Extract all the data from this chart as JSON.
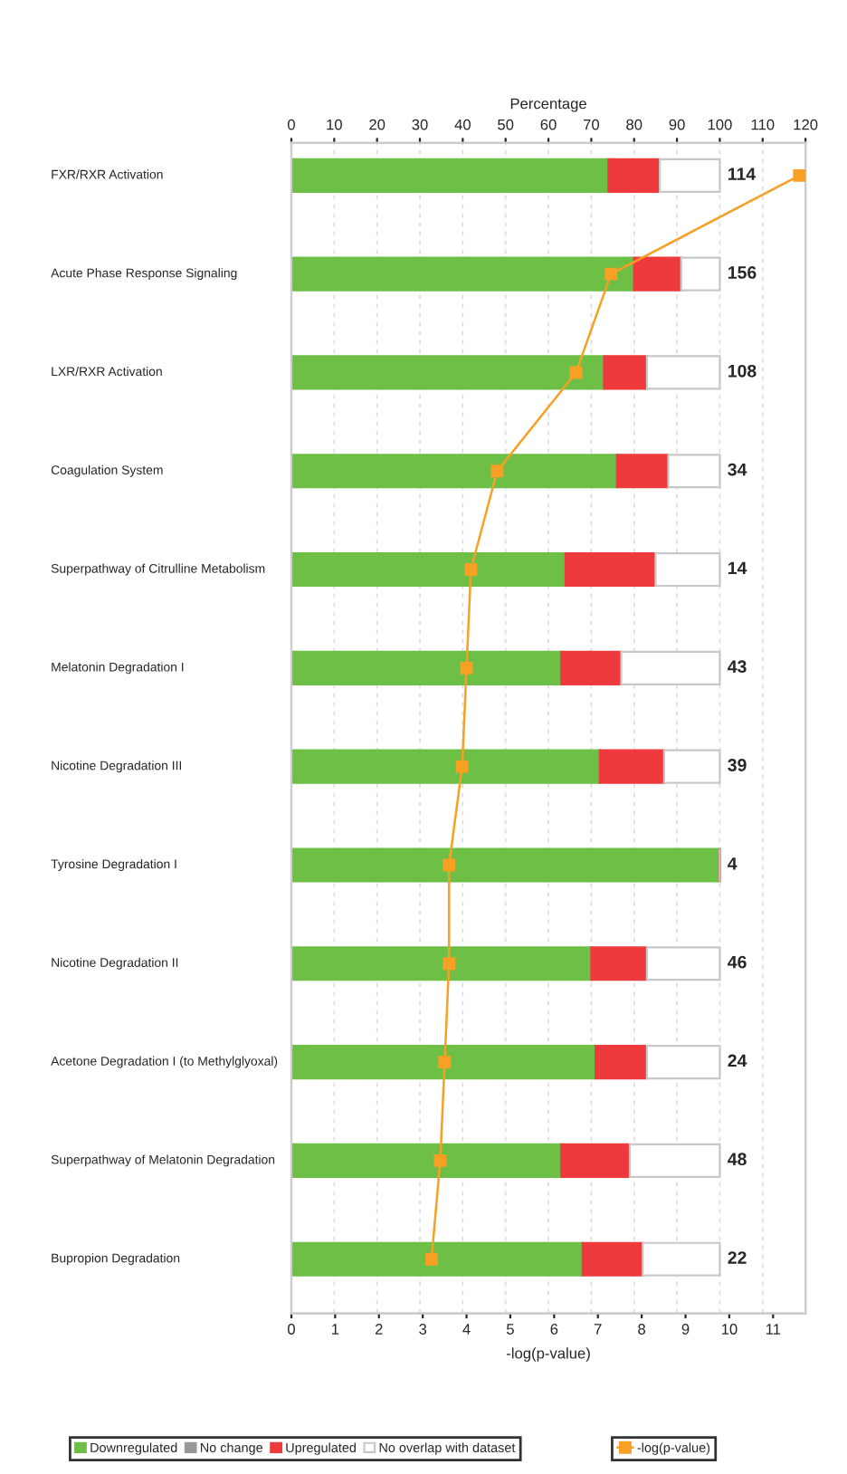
{
  "chart_data": {
    "type": "bar",
    "orientation": "horizontal",
    "stacked": true,
    "categories": [
      "FXR/RXR Activation",
      "Acute Phase Response Signaling",
      "LXR/RXR Activation",
      "Coagulation System",
      "Superpathway of Citrulline Metabolism",
      "Melatonin Degradation I",
      "Nicotine Degradation III",
      "Tyrosine Degradation I",
      "Nicotine Degradation II",
      "Acetone Degradation I (to Methylglyoxal)",
      "Superpathway of Melatonin Degradation",
      "Bupropion Degradation"
    ],
    "series": [
      {
        "name": "Downregulated",
        "color": "#6dbf45",
        "values": [
          74,
          80,
          73,
          76,
          64,
          63,
          72,
          100,
          70,
          71,
          63,
          68
        ]
      },
      {
        "name": "No change",
        "color": "#999999",
        "values": [
          0,
          0,
          0,
          0,
          0,
          0,
          0,
          0,
          0,
          0,
          0,
          0
        ]
      },
      {
        "name": "Upregulated",
        "color": "#ee3a3c",
        "values": [
          12,
          11,
          10,
          12,
          21,
          14,
          15,
          0,
          13,
          12,
          16,
          14
        ]
      },
      {
        "name": "No overlap with dataset",
        "color": "#ffffff",
        "values": [
          14,
          9,
          17,
          12,
          15,
          23,
          13,
          0,
          17,
          17,
          21,
          18
        ]
      },
      {
        "name": "-log(p-value)",
        "type": "line",
        "axis": "x2",
        "color": "#f7a024",
        "marker": "square",
        "values": [
          11.6,
          7.3,
          6.5,
          4.7,
          4.1,
          4.0,
          3.9,
          3.6,
          3.6,
          3.5,
          3.4,
          3.2
        ]
      }
    ],
    "annotations": [
      "114",
      "156",
      "108",
      "34",
      "14",
      "43",
      "39",
      "4",
      "46",
      "24",
      "48",
      "22"
    ],
    "xlabel": "Percentage",
    "xlim": [
      0,
      120
    ],
    "xticks": [
      0,
      10,
      20,
      30,
      40,
      50,
      60,
      70,
      80,
      90,
      100,
      110,
      120
    ],
    "x2label": "-log(p-value)",
    "x2lim": [
      0,
      11.74
    ],
    "x2ticks": [
      0,
      1,
      2,
      3,
      4,
      5,
      6,
      7,
      8,
      9,
      10,
      11
    ],
    "grid": true,
    "legend": "bottom"
  }
}
